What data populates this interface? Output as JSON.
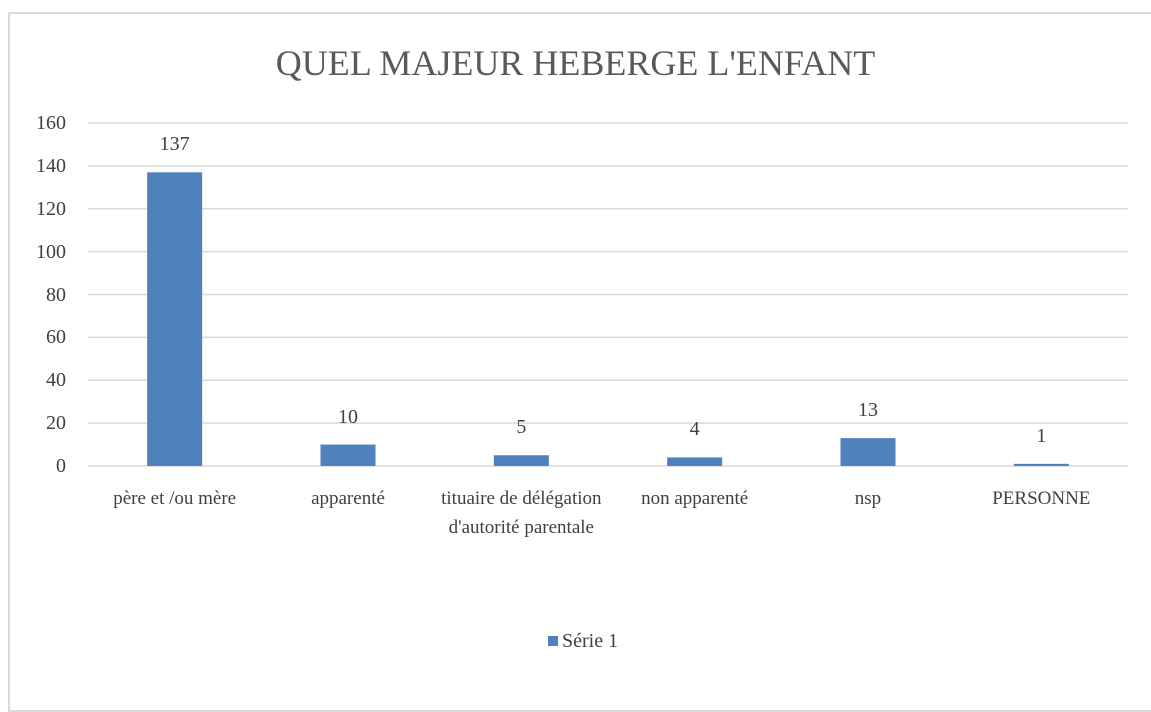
{
  "chart_data": {
    "type": "bar",
    "title": "QUEL MAJEUR HEBERGE L'ENFANT",
    "categories": [
      "père et /ou mère",
      "apparenté",
      "tituaire de délégation d'autorité parentale",
      "non apparenté",
      "nsp",
      "PERSONNE"
    ],
    "series": [
      {
        "name": "Série 1",
        "color": "#4f81bd",
        "values": [
          137,
          10,
          5,
          4,
          13,
          1
        ]
      }
    ],
    "ylim": [
      0,
      160
    ],
    "yticks": [
      0,
      20,
      40,
      60,
      80,
      100,
      120,
      140,
      160
    ],
    "grid": true,
    "data_labels": true,
    "legend": "bottom"
  }
}
